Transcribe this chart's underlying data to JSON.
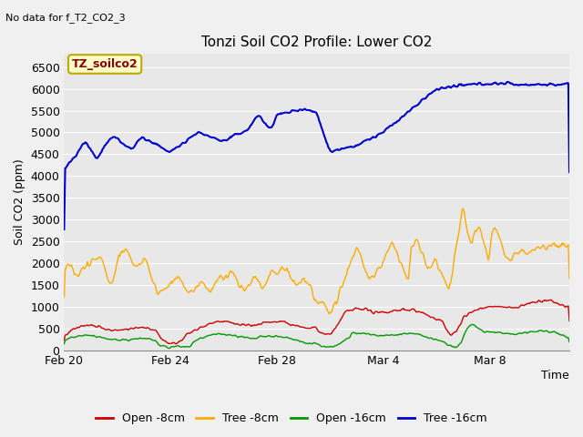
{
  "title": "Tonzi Soil CO2 Profile: Lower CO2",
  "subtitle": "No data for f_T2_CO2_3",
  "ylabel": "Soil CO2 (ppm)",
  "xlabel": "Time",
  "ylim": [
    0,
    6800
  ],
  "yticks": [
    0,
    500,
    1000,
    1500,
    2000,
    2500,
    3000,
    3500,
    4000,
    4500,
    5000,
    5500,
    6000,
    6500
  ],
  "xtick_labels": [
    "Feb 20",
    "Feb 24",
    "Feb 28",
    "Mar 4",
    "Mar 8"
  ],
  "xtick_positions": [
    0,
    4,
    8,
    12,
    16
  ],
  "xlim": [
    0,
    19
  ],
  "legend_label": "TZ_soilco2",
  "series_labels": [
    "Open -8cm",
    "Tree -8cm",
    "Open -16cm",
    "Tree -16cm"
  ],
  "series_colors": [
    "#cc0000",
    "#ffaa00",
    "#009900",
    "#0000cc"
  ],
  "bg_color": "#e8e8e8",
  "n_points": 500,
  "title_fontsize": 11,
  "subtitle_fontsize": 8,
  "axis_fontsize": 9,
  "legend_fontsize": 9
}
